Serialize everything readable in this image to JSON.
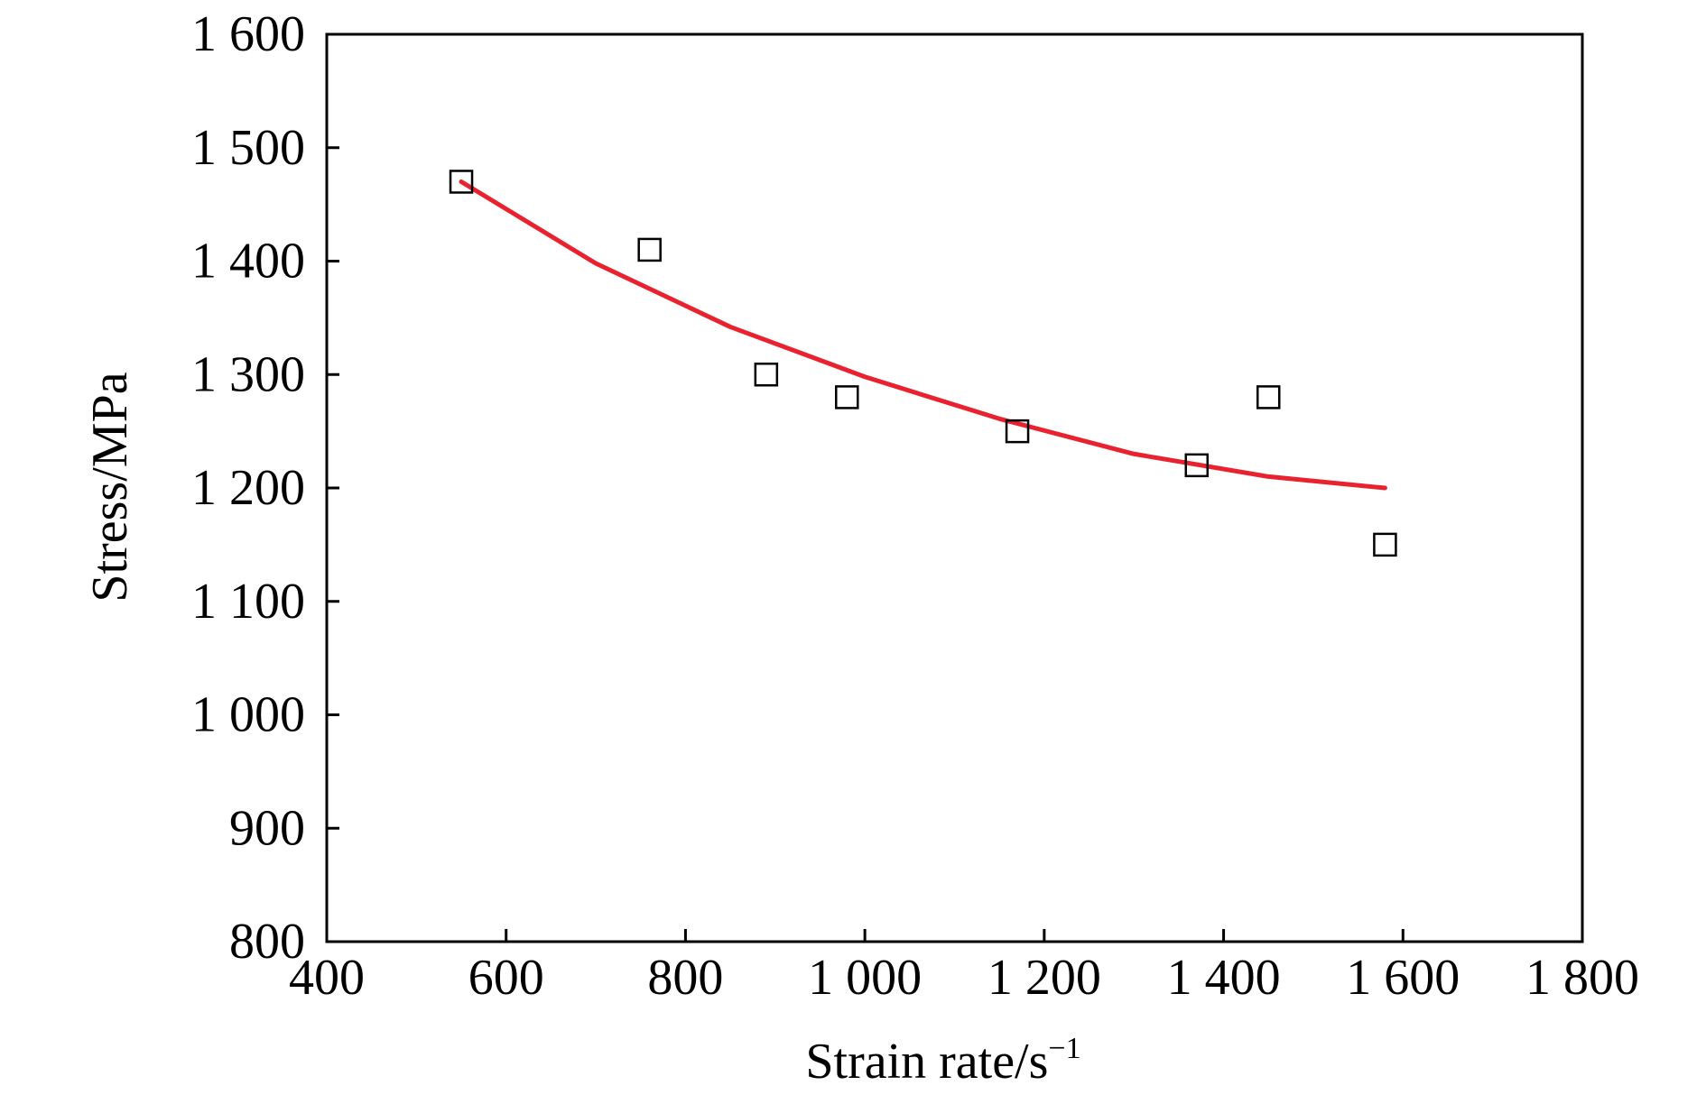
{
  "chart_data": {
    "type": "scatter",
    "xlabel": "Strain rate/s",
    "xlabel_sup": "−1",
    "ylabel": "Stress/MPa",
    "xlim": [
      400,
      1800
    ],
    "ylim": [
      800,
      1600
    ],
    "x_ticks": [
      400,
      600,
      800,
      1000,
      1200,
      1400,
      1600,
      1800
    ],
    "x_tick_labels": [
      "400",
      "600",
      "800",
      "1 000",
      "1 200",
      "1 400",
      "1 600",
      "1 800"
    ],
    "y_ticks": [
      800,
      900,
      1000,
      1100,
      1200,
      1300,
      1400,
      1500,
      1600
    ],
    "y_tick_labels": [
      "800",
      "900",
      "1 000",
      "1 100",
      "1 200",
      "1 300",
      "1 400",
      "1 500",
      "1 600"
    ],
    "grid": false,
    "series": [
      {
        "kind": "points",
        "marker": "open-square",
        "color": "#000000",
        "x": [
          550,
          760,
          890,
          980,
          1170,
          1370,
          1450,
          1580
        ],
        "y": [
          1470,
          1410,
          1300,
          1280,
          1250,
          1220,
          1280,
          1150
        ]
      },
      {
        "kind": "fit-line",
        "color": "#e8232f",
        "x": [
          550,
          700,
          850,
          1000,
          1150,
          1300,
          1450,
          1580
        ],
        "y": [
          1470,
          1398,
          1342,
          1298,
          1261,
          1230,
          1210,
          1200
        ]
      }
    ]
  }
}
